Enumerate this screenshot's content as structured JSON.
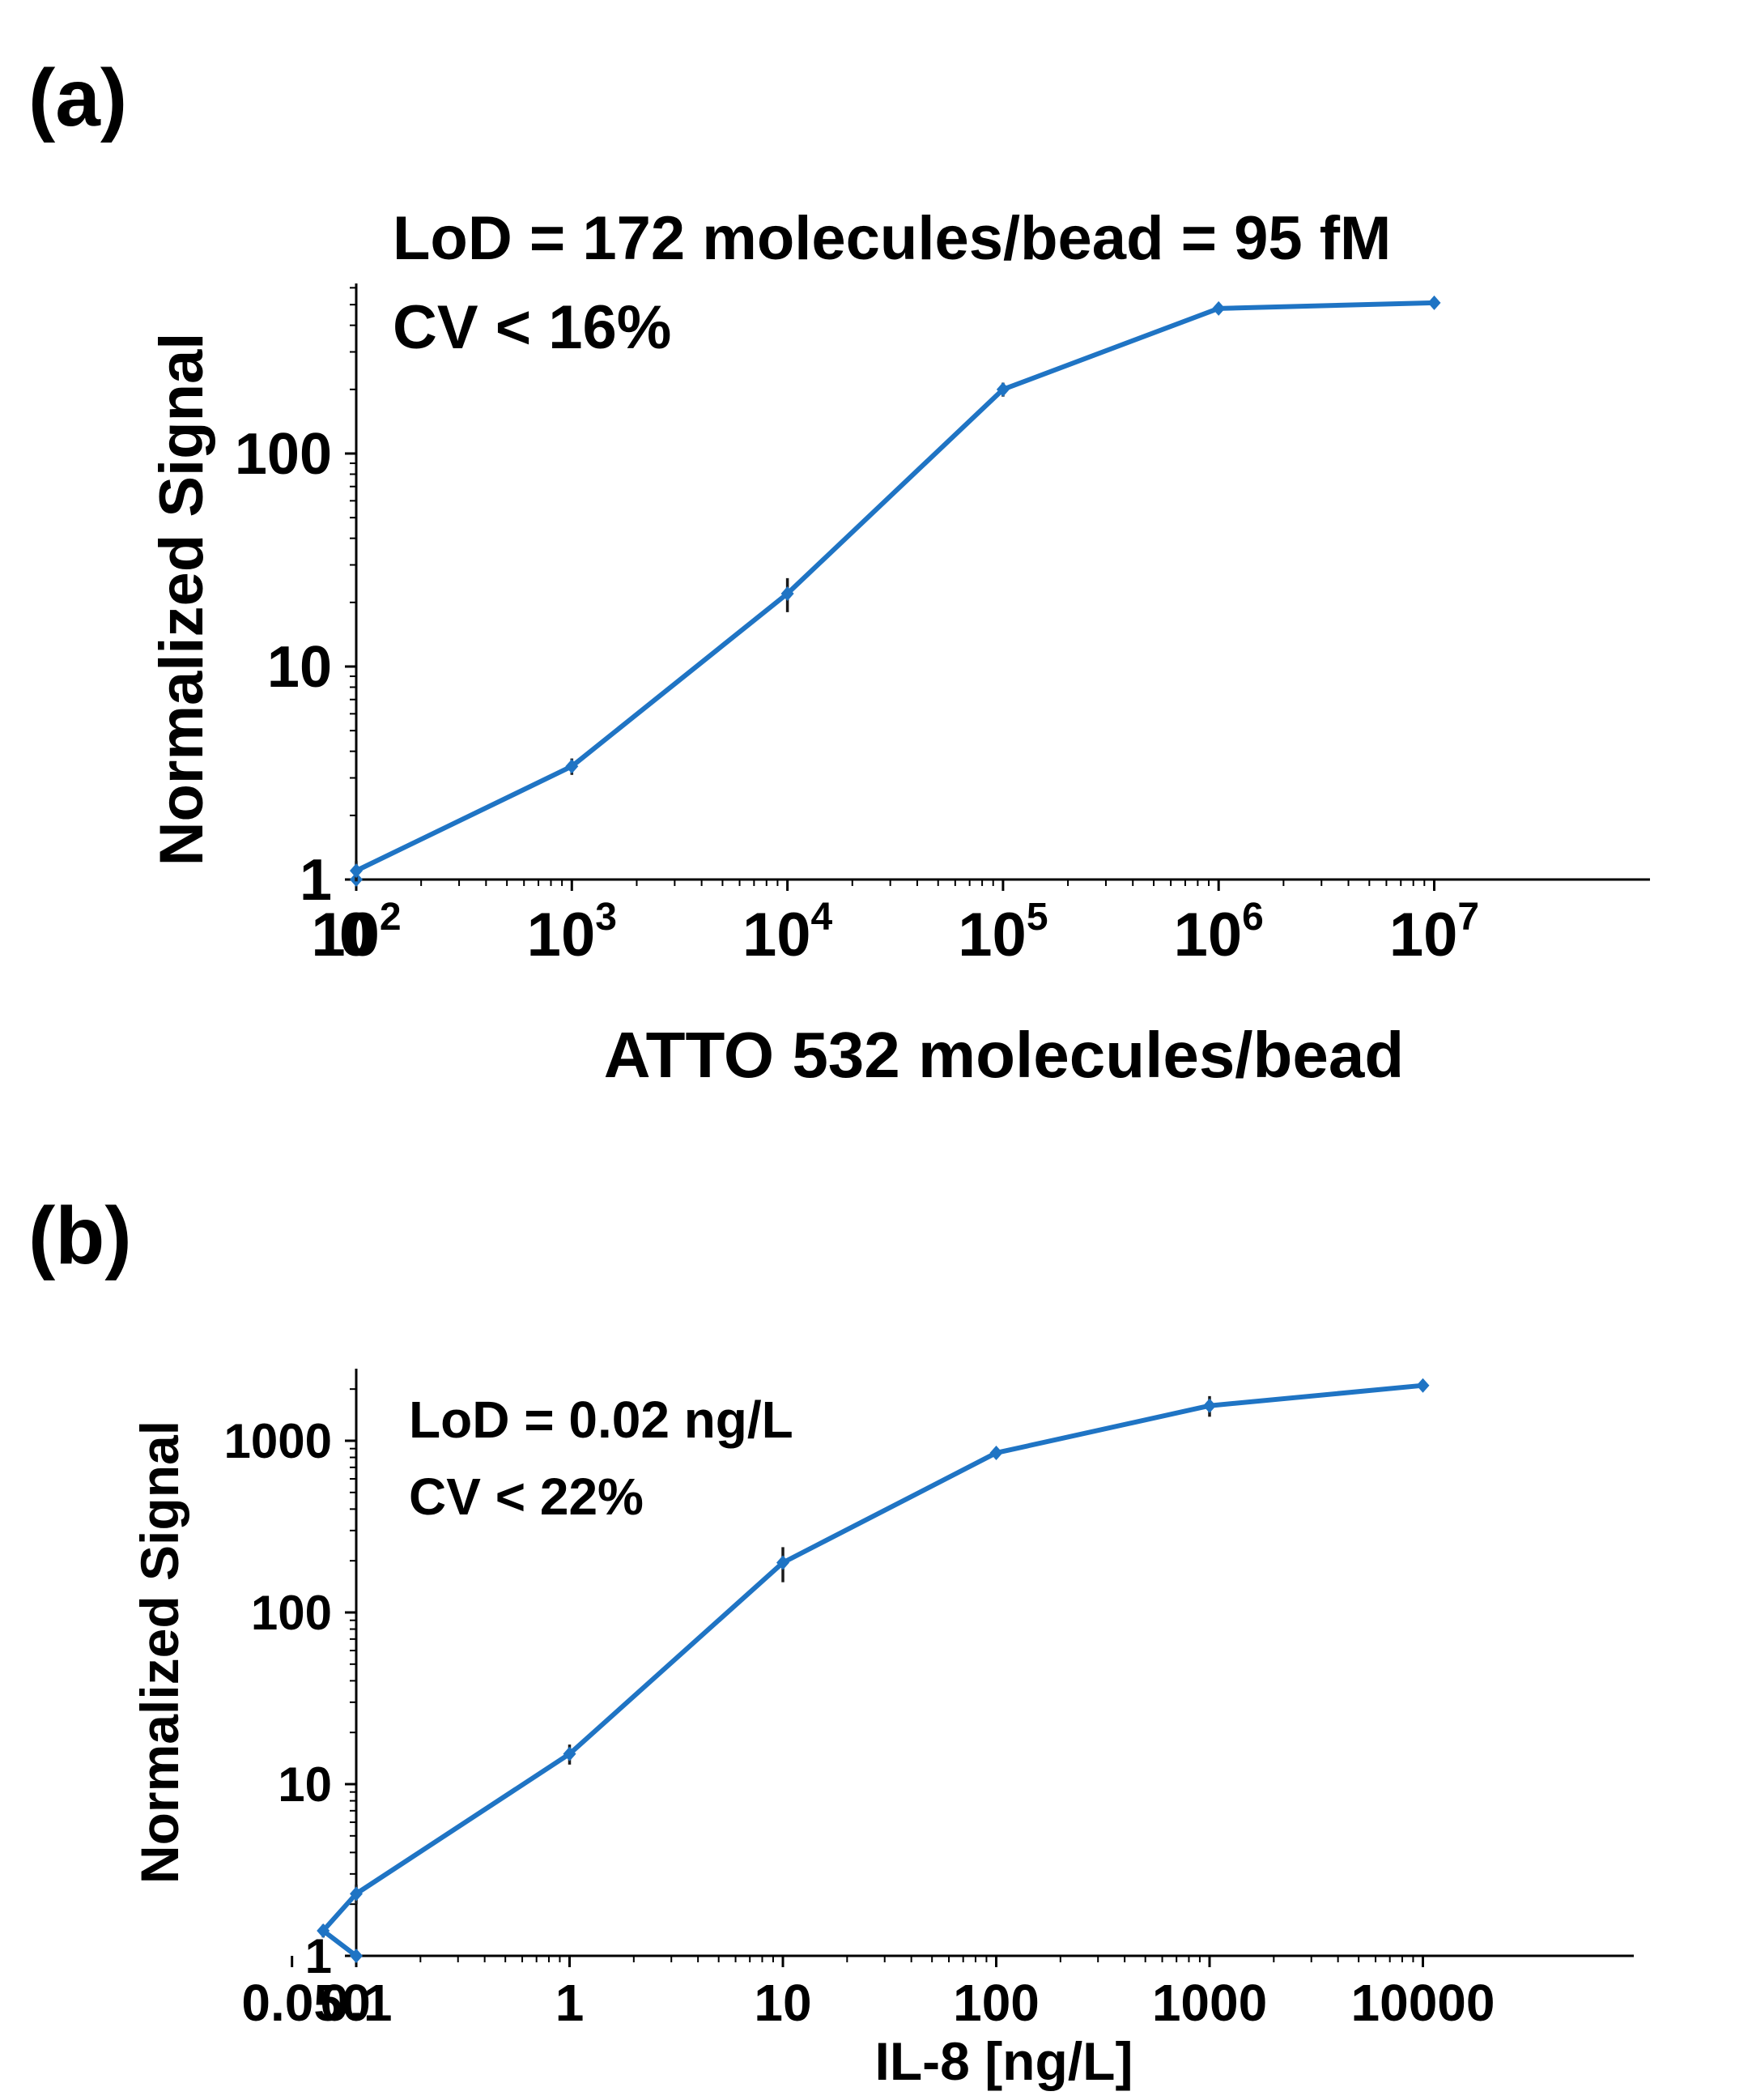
{
  "colors": {
    "series": "#1f74c4",
    "error_bar": "#1a1a1a",
    "axis": "#000000"
  },
  "chart_data": [
    {
      "panel_label": "(a)",
      "type": "line",
      "title": "",
      "annotations": [
        "LoD = 172 molecules/bead = 95 fM",
        "CV < 16%"
      ],
      "xlabel": "ATTO 532 molecules/bead",
      "ylabel": "Normalized Signal",
      "xscale": "log (0 shown at left edge)",
      "yscale": "log",
      "ylim": [
        1,
        600
      ],
      "x_tick_labels": [
        {
          "value": 0,
          "base": "0",
          "exp": ""
        },
        {
          "value": 100,
          "base": "10",
          "exp": "2"
        },
        {
          "value": 1000,
          "base": "10",
          "exp": "3"
        },
        {
          "value": 10000,
          "base": "10",
          "exp": "4"
        },
        {
          "value": 100000,
          "base": "10",
          "exp": "5"
        },
        {
          "value": 1000000,
          "base": "10",
          "exp": "6"
        },
        {
          "value": 10000000,
          "base": "10",
          "exp": "7"
        }
      ],
      "y_tick_labels": [
        "1",
        "10",
        "100"
      ],
      "x": [
        0,
        100,
        1000,
        10000,
        100000,
        1000000,
        10000000
      ],
      "values": [
        1.0,
        1.1,
        3.4,
        22,
        200,
        480,
        510
      ],
      "errors": [
        0.03,
        0.12,
        0.3,
        4,
        15,
        20,
        20
      ]
    },
    {
      "panel_label": "(b)",
      "type": "line",
      "title": "",
      "annotations": [
        "LoD = 0.02 ng/L",
        "CV < 22%"
      ],
      "xlabel": "IL-8 [ng/L]",
      "ylabel": "Normalized Signal",
      "xscale": "log (0 shown at left edge)",
      "yscale": "log",
      "ylim": [
        1,
        2500
      ],
      "x_tick_labels": [
        {
          "value": 0,
          "base": "0",
          "exp": ""
        },
        {
          "value": 0.05,
          "base": "0.05",
          "exp": ""
        },
        {
          "value": 0.1,
          "base": "0.1",
          "exp": ""
        },
        {
          "value": 1,
          "base": "1",
          "exp": ""
        },
        {
          "value": 10,
          "base": "10",
          "exp": ""
        },
        {
          "value": 100,
          "base": "100",
          "exp": ""
        },
        {
          "value": 1000,
          "base": "1000",
          "exp": ""
        },
        {
          "value": 10000,
          "base": "10000",
          "exp": ""
        }
      ],
      "y_tick_labels": [
        "1",
        "10",
        "100",
        "1000"
      ],
      "x": [
        0,
        0.07,
        0.1,
        1,
        10,
        100,
        1000,
        10000
      ],
      "values": [
        1.0,
        1.4,
        2.3,
        15,
        195,
        850,
        1600,
        2100
      ],
      "errors": [
        0.03,
        0.12,
        0.3,
        2,
        45,
        60,
        220,
        80
      ]
    }
  ]
}
